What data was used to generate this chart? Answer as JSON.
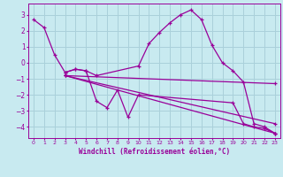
{
  "background_color": "#c8eaf0",
  "grid_color": "#aad0da",
  "line_color": "#990099",
  "xlabel": "Windchill (Refroidissement éolien,°C)",
  "xlim": [
    -0.5,
    23.5
  ],
  "ylim": [
    -4.7,
    3.7
  ],
  "yticks": [
    -4,
    -3,
    -2,
    -1,
    0,
    1,
    2,
    3
  ],
  "xticks": [
    0,
    1,
    2,
    3,
    4,
    5,
    6,
    7,
    8,
    9,
    10,
    11,
    12,
    13,
    14,
    15,
    16,
    17,
    18,
    19,
    20,
    21,
    22,
    23
  ],
  "series": [
    {
      "x": [
        0,
        1,
        2,
        3,
        4,
        5,
        6,
        10,
        11,
        12,
        13,
        14,
        15,
        16,
        17,
        18,
        19,
        20,
        21,
        22,
        23
      ],
      "y": [
        2.7,
        2.2,
        0.5,
        -0.6,
        -0.4,
        -0.5,
        -0.8,
        -0.2,
        1.2,
        1.9,
        2.5,
        3.0,
        3.3,
        2.7,
        1.1,
        0.0,
        -0.5,
        -1.2,
        -3.8,
        -4.0,
        -4.4
      ]
    },
    {
      "x": [
        3,
        4,
        5,
        6,
        7,
        8,
        9,
        10,
        19,
        20,
        21,
        22,
        23
      ],
      "y": [
        -0.6,
        -0.4,
        -0.5,
        -2.4,
        -2.8,
        -1.7,
        -3.4,
        -2.0,
        -2.5,
        -3.8,
        -4.0,
        -4.1,
        -4.4
      ]
    },
    {
      "x": [
        3,
        23
      ],
      "y": [
        -0.8,
        -1.3
      ]
    },
    {
      "x": [
        3,
        23
      ],
      "y": [
        -0.8,
        -4.4
      ]
    },
    {
      "x": [
        3,
        23
      ],
      "y": [
        -0.8,
        -3.8
      ]
    }
  ]
}
